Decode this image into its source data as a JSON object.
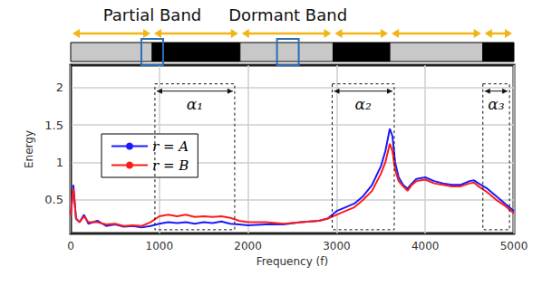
{
  "chart_data": {
    "type": "line",
    "xlabel": "Frequency (f)",
    "ylabel": "Energy",
    "x": [
      0,
      30,
      60,
      100,
      150,
      200,
      300,
      400,
      500,
      600,
      700,
      800,
      900,
      1000,
      1100,
      1200,
      1300,
      1400,
      1500,
      1600,
      1700,
      1800,
      1900,
      2000,
      2200,
      2400,
      2600,
      2800,
      2900,
      3000,
      3100,
      3200,
      3300,
      3400,
      3500,
      3550,
      3600,
      3630,
      3660,
      3700,
      3750,
      3800,
      3850,
      3900,
      4000,
      4100,
      4200,
      4300,
      4400,
      4500,
      4550,
      4600,
      4700,
      4800,
      4900,
      5000
    ],
    "series": [
      {
        "name": "r = A",
        "color": "#1a1aff",
        "values": [
          0.3,
          0.7,
          0.25,
          0.2,
          0.3,
          0.18,
          0.22,
          0.15,
          0.17,
          0.14,
          0.15,
          0.13,
          0.15,
          0.18,
          0.2,
          0.19,
          0.2,
          0.18,
          0.2,
          0.19,
          0.21,
          0.18,
          0.17,
          0.16,
          0.17,
          0.17,
          0.2,
          0.22,
          0.25,
          0.35,
          0.4,
          0.45,
          0.55,
          0.7,
          0.95,
          1.15,
          1.45,
          1.35,
          1.0,
          0.8,
          0.7,
          0.65,
          0.72,
          0.78,
          0.8,
          0.75,
          0.72,
          0.7,
          0.7,
          0.75,
          0.76,
          0.72,
          0.65,
          0.55,
          0.45,
          0.35
        ]
      },
      {
        "name": "r = B",
        "color": "#ff1a1a",
        "values": [
          0.3,
          0.65,
          0.25,
          0.2,
          0.28,
          0.2,
          0.2,
          0.17,
          0.18,
          0.15,
          0.16,
          0.15,
          0.2,
          0.28,
          0.3,
          0.28,
          0.3,
          0.27,
          0.28,
          0.27,
          0.28,
          0.26,
          0.22,
          0.2,
          0.2,
          0.18,
          0.2,
          0.22,
          0.25,
          0.3,
          0.35,
          0.4,
          0.5,
          0.62,
          0.85,
          1.0,
          1.25,
          1.15,
          0.9,
          0.75,
          0.68,
          0.62,
          0.7,
          0.75,
          0.77,
          0.72,
          0.7,
          0.68,
          0.68,
          0.72,
          0.73,
          0.68,
          0.6,
          0.5,
          0.42,
          0.32
        ]
      }
    ],
    "xlim": [
      0,
      5000
    ],
    "xticks": [
      0,
      1000,
      2000,
      3000,
      4000,
      5000
    ],
    "ylim": [
      0.05,
      2.3
    ],
    "yticks": [
      0.5,
      1,
      1.5,
      2
    ],
    "grid": true,
    "legend": "left",
    "bands": [
      {
        "start": 0,
        "end": 920,
        "color": "#c8c8c8"
      },
      {
        "start": 920,
        "end": 1910,
        "color": "#000000"
      },
      {
        "start": 1910,
        "end": 2960,
        "color": "#c8c8c8"
      },
      {
        "start": 2960,
        "end": 3600,
        "color": "#000000"
      },
      {
        "start": 3600,
        "end": 4650,
        "color": "#c8c8c8"
      },
      {
        "start": 4650,
        "end": 5000,
        "color": "#000000"
      }
    ],
    "band_labels": [
      {
        "text": "Partial Band",
        "x": 920
      },
      {
        "text": "Dormant Band",
        "x": 2450
      }
    ],
    "regions": [
      {
        "text": "α₁",
        "x0": 950,
        "x1": 1850,
        "y0": 0.1,
        "y1": 2.05
      },
      {
        "text": "α₂",
        "x0": 2950,
        "x1": 3650,
        "y0": 0.1,
        "y1": 2.05
      },
      {
        "text": "α₃",
        "x0": 4650,
        "x1": 4950,
        "y0": 0.1,
        "y1": 2.05
      }
    ]
  }
}
